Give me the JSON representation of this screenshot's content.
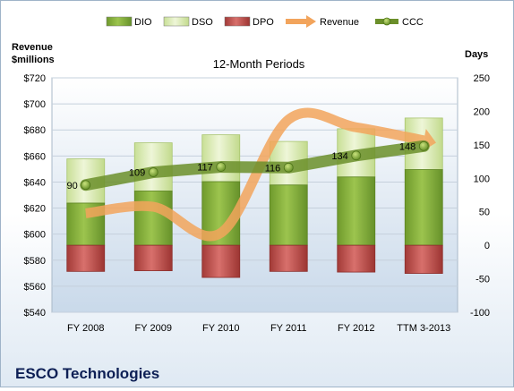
{
  "chart_data": {
    "type": "bar",
    "title": "12-Month Periods",
    "company": "ESCO Technologies",
    "left_axis_label": "Revenue\n$millions",
    "right_axis_label": "Days",
    "categories": [
      "FY 2008",
      "FY 2009",
      "FY 2010",
      "FY 2011",
      "FY 2012",
      "TTM 3-2013"
    ],
    "left_axis": {
      "range": [
        540,
        720
      ],
      "ticks": [
        "$540",
        "$560",
        "$580",
        "$600",
        "$620",
        "$640",
        "$660",
        "$680",
        "$700",
        "$720"
      ]
    },
    "right_axis": {
      "range": [
        -100,
        250
      ],
      "ticks": [
        "-100",
        "-50",
        "0",
        "50",
        "100",
        "150",
        "200",
        "250"
      ]
    },
    "series": [
      {
        "name": "DIO",
        "type": "stacked-bar",
        "axis": "right",
        "color": "#8ab040",
        "values": [
          63,
          81,
          95,
          90,
          102,
          113
        ]
      },
      {
        "name": "DSO",
        "type": "stacked-bar",
        "axis": "right",
        "color": "#d8eab0",
        "values": [
          66,
          72,
          70,
          65,
          72,
          77
        ]
      },
      {
        "name": "DPO",
        "type": "stacked-bar-negative",
        "axis": "right",
        "color": "#c0504d",
        "values": [
          -39,
          -38,
          -48,
          -39,
          -40,
          -42
        ]
      },
      {
        "name": "Revenue",
        "type": "smooth-line-arrow",
        "axis": "left",
        "color": "#f2a45c",
        "values": [
          616,
          621,
          601,
          688,
          682,
          672
        ]
      },
      {
        "name": "CCC",
        "type": "line",
        "axis": "right",
        "color": "#6b8f2a",
        "values": [
          90,
          109,
          117,
          116,
          134,
          148
        ]
      }
    ],
    "data_labels": [
      "90",
      "109",
      "117",
      "116",
      "134",
      "148"
    ],
    "grid": true,
    "legend_position": "top"
  }
}
